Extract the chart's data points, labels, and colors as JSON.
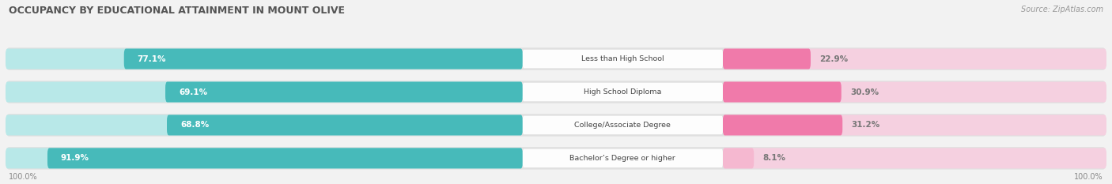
{
  "title": "OCCUPANCY BY EDUCATIONAL ATTAINMENT IN MOUNT OLIVE",
  "source": "Source: ZipAtlas.com",
  "categories": [
    "Less than High School",
    "High School Diploma",
    "College/Associate Degree",
    "Bachelor’s Degree or higher"
  ],
  "owner_values": [
    77.1,
    69.1,
    68.8,
    91.9
  ],
  "renter_values": [
    22.9,
    30.9,
    31.2,
    8.1
  ],
  "owner_color": [
    "#47baba",
    "#47baba",
    "#47baba",
    "#47baba"
  ],
  "owner_track_color": [
    "#b8e8e8",
    "#b8e8e8",
    "#b8e8e8",
    "#b8e8e8"
  ],
  "renter_color": [
    "#f07aaa",
    "#f07aaa",
    "#f07aaa",
    "#f5b8d0"
  ],
  "renter_track_color": [
    "#f5d0e0",
    "#f5d0e0",
    "#f5d0e0",
    "#f5d0e0"
  ],
  "bg_color": "#f2f2f2",
  "track_bg_color": "#e8e8e8",
  "title_fontsize": 9,
  "value_fontsize": 7.5,
  "tick_fontsize": 7,
  "source_fontsize": 7,
  "legend_fontsize": 7.5,
  "category_fontsize": 6.8,
  "axis_label_left": "100.0%",
  "axis_label_right": "100.0%"
}
